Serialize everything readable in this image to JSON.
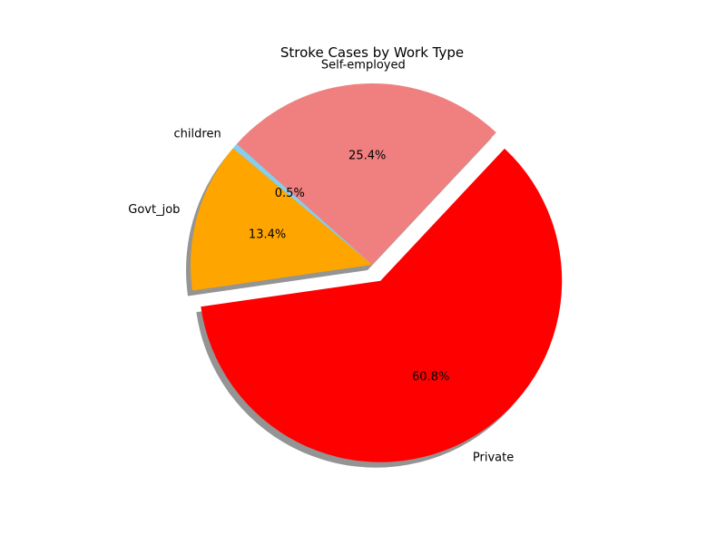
{
  "chart_data": {
    "type": "pie",
    "title": "Stroke Cases by Work Type",
    "slices": [
      {
        "label": "Govt_job",
        "value": 13.4,
        "pct_label": "13.4%",
        "color": "#ffa500",
        "explode": 0
      },
      {
        "label": "Private",
        "value": 60.8,
        "pct_label": "60.8%",
        "color": "#ff0000",
        "explode": 0.1
      },
      {
        "label": "Self-employed",
        "value": 25.4,
        "pct_label": "25.4%",
        "color": "#f08080",
        "explode": 0
      },
      {
        "label": "children",
        "value": 0.5,
        "pct_label": "0.5%",
        "color": "#87ceeb",
        "explode": 0
      }
    ],
    "start_angle_deg": 140,
    "counterclockwise": true,
    "shadow": true
  }
}
